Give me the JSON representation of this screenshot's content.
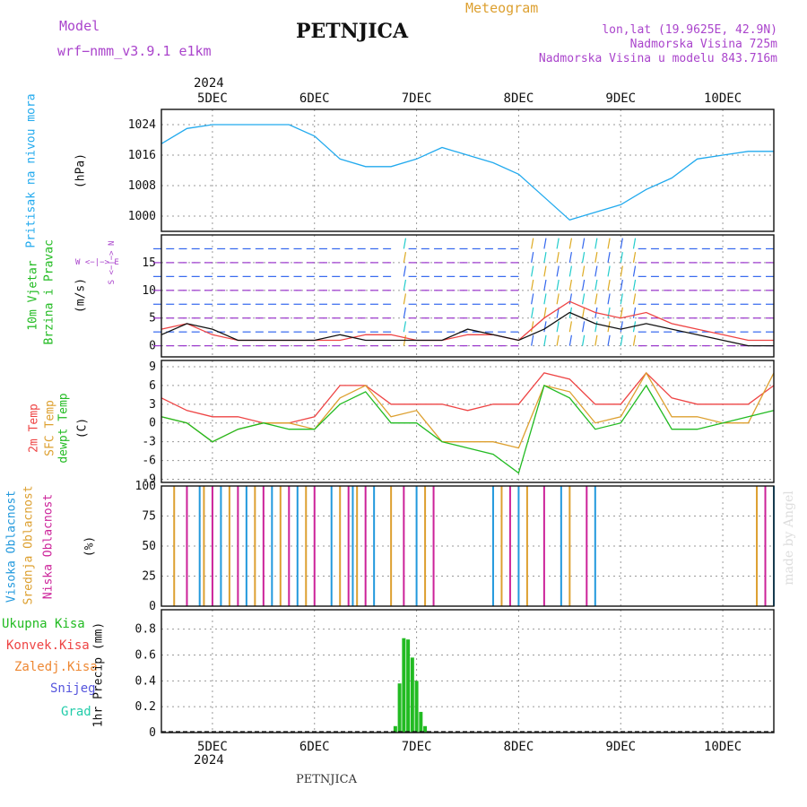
{
  "header": {
    "model_label": "Model",
    "model_name": "wrf−nmm_v3.9.1  e1km",
    "station": "PETNJICA",
    "product": "Meteogram",
    "lonlat": "lon,lat (19.9625E, 42.9N)",
    "elevation": "Nadmorska Visina 725m",
    "model_elevation": "Nadmorska Visina u modelu 843.716m",
    "footer_station": "PETNJICA",
    "watermark": "made by Angel",
    "year_top": "2024",
    "year_bottom": "2024"
  },
  "colors": {
    "pressure": "#22aaee",
    "temp2m": "#ee4444",
    "sfc": "#dda030",
    "dewpt": "#22bb22",
    "high_cloud": "#2299dd",
    "mid_cloud": "#dda030",
    "low_cloud": "#cc2299",
    "total_precip": "#22bb22",
    "conv": "#ee4444",
    "freezing": "#ee8833",
    "snow": "#5555dd",
    "hail": "#22ccaa",
    "axis_label_purple": "#aa44cc"
  },
  "x_axis": {
    "days": [
      "5DEC",
      "6DEC",
      "7DEC",
      "8DEC",
      "9DEC",
      "10DEC"
    ],
    "start": "2024-12-04 12:00",
    "end": "2024-12-10 12:00"
  },
  "panels": {
    "pressure": {
      "label": "Pritisak na nivou mora",
      "unit": "(hPa)"
    },
    "wind": {
      "label1": "10m Vjetar",
      "label2": "Brzina i Pravac",
      "unit": "(m/s)",
      "compass": "W <−|−> E",
      "compass_ns": "S <−|−> N"
    },
    "temp": {
      "label_2m": "2m Temp",
      "label_sfc": "SFC Temp",
      "label_dew": "dewpt Temp",
      "unit": "(C)"
    },
    "cloud": {
      "label_high": "Visoka Oblacnost",
      "label_mid": "Srednja Oblacnost",
      "label_low": "Niska Oblacnost",
      "unit": "(%)"
    },
    "precip": {
      "legend": [
        "Ukupna Kisa",
        "Konvek.Kisa",
        "Zaledj.Kisa",
        "Snijeg",
        "Grad"
      ],
      "unit": "1hr Precip (mm)"
    }
  },
  "chart_data": [
    {
      "type": "line",
      "panel": "pressure",
      "ylim": [
        996,
        1028
      ],
      "yticks": [
        1000,
        1008,
        1016,
        1024
      ],
      "x_hours": [
        0,
        6,
        12,
        18,
        24,
        30,
        36,
        42,
        48,
        54,
        60,
        66,
        72,
        78,
        84,
        90,
        96,
        102,
        108,
        114,
        120,
        126,
        132,
        138,
        144
      ],
      "series": [
        {
          "values": [
            1019,
            1023,
            1024,
            1024,
            1024,
            1024,
            1021,
            1015,
            1013,
            1013,
            1015,
            1018,
            1016,
            1014,
            1011,
            1005,
            999,
            1001,
            1003,
            1007,
            1010,
            1015,
            1016,
            1017,
            1017
          ]
        }
      ]
    },
    {
      "type": "line",
      "panel": "wind",
      "ylim": [
        -2,
        20
      ],
      "yticks": [
        0,
        5,
        10,
        15
      ],
      "x_hours": [
        0,
        6,
        12,
        18,
        24,
        30,
        36,
        42,
        48,
        54,
        60,
        66,
        72,
        78,
        84,
        90,
        96,
        102,
        108,
        114,
        120,
        126,
        132,
        138,
        144
      ],
      "series": [
        {
          "values": [
            3,
            4,
            2,
            1,
            1,
            1,
            1,
            1,
            2,
            2,
            1,
            1,
            2,
            2,
            1,
            5,
            8,
            6,
            5,
            6,
            4,
            3,
            2,
            1,
            1
          ]
        },
        {
          "values": [
            2,
            4,
            3,
            1,
            1,
            1,
            1,
            2,
            1,
            1,
            1,
            1,
            3,
            2,
            1,
            3,
            6,
            4,
            3,
            4,
            3,
            2,
            1,
            0,
            0
          ]
        }
      ]
    },
    {
      "type": "line",
      "panel": "temp",
      "ylim": [
        -9.5,
        10
      ],
      "yticks": [
        -9,
        -6,
        -3,
        0,
        3,
        6,
        9
      ],
      "x_hours": [
        0,
        6,
        12,
        18,
        24,
        30,
        36,
        42,
        48,
        54,
        60,
        66,
        72,
        78,
        84,
        90,
        96,
        102,
        108,
        114,
        120,
        126,
        132,
        138,
        144
      ],
      "series": [
        {
          "values": [
            4,
            2,
            1,
            1,
            0,
            0,
            1,
            6,
            6,
            3,
            3,
            3,
            2,
            3,
            3,
            8,
            7,
            3,
            3,
            8,
            4,
            3,
            3,
            3,
            6
          ]
        },
        {
          "values": [
            1,
            0,
            -3,
            -1,
            0,
            0,
            -1,
            4,
            6,
            1,
            2,
            -3,
            -3,
            -3,
            -4,
            6,
            5,
            0,
            1,
            8,
            1,
            1,
            0,
            0,
            8
          ]
        },
        {
          "values": [
            1,
            0,
            -3,
            -1,
            0,
            -1,
            -1,
            3,
            5,
            0,
            0,
            -3,
            -4,
            -5,
            -8,
            6,
            4,
            -1,
            0,
            6,
            -1,
            -1,
            0,
            1,
            2
          ]
        }
      ]
    },
    {
      "type": "bar",
      "panel": "cloud",
      "ylim": [
        0,
        100
      ],
      "yticks": [
        0,
        25,
        50,
        75,
        100
      ],
      "x_hours": [
        3,
        6,
        9,
        10,
        12,
        14,
        16,
        18,
        20,
        22,
        24,
        26,
        28,
        30,
        32,
        34,
        36,
        40,
        42,
        44,
        45,
        46,
        48,
        50,
        54,
        57,
        60,
        62,
        64,
        78,
        80,
        82,
        84,
        86,
        90,
        94,
        96,
        100,
        102,
        140,
        142,
        144
      ],
      "series": [
        {
          "values": [
            100,
            100,
            100,
            100,
            100,
            100,
            100,
            100,
            100,
            100,
            100,
            100,
            100,
            100,
            100,
            100,
            100,
            100,
            100,
            100,
            100,
            100,
            100,
            100,
            100,
            100,
            100,
            100,
            100,
            100,
            100,
            100,
            100,
            100,
            100,
            100,
            100,
            100,
            100,
            100,
            100,
            100
          ]
        }
      ]
    },
    {
      "type": "bar",
      "panel": "precip",
      "ylim": [
        0,
        0.95
      ],
      "yticks": [
        0,
        0.2,
        0.4,
        0.6,
        0.8
      ],
      "x_hours": [
        55,
        56,
        57,
        58,
        59,
        60,
        61,
        62
      ],
      "series": [
        {
          "values": [
            0.05,
            0.38,
            0.73,
            0.72,
            0.58,
            0.4,
            0.16,
            0.05
          ]
        }
      ]
    }
  ]
}
